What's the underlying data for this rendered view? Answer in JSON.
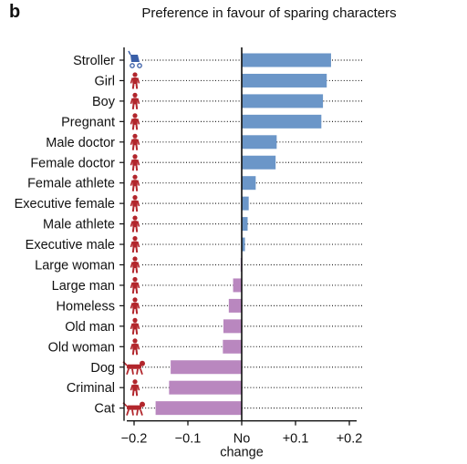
{
  "panel_letter": "b",
  "chart_data": {
    "type": "bar",
    "orientation": "horizontal",
    "title": "Preference in favour of sparing characters",
    "categories": [
      "Stroller",
      "Girl",
      "Boy",
      "Pregnant",
      "Male doctor",
      "Female doctor",
      "Female athlete",
      "Executive female",
      "Male athlete",
      "Executive male",
      "Large woman",
      "Large man",
      "Homeless",
      "Old man",
      "Old woman",
      "Dog",
      "Criminal",
      "Cat"
    ],
    "values": [
      0.166,
      0.158,
      0.151,
      0.148,
      0.065,
      0.063,
      0.026,
      0.013,
      0.011,
      0.006,
      -0.002,
      -0.016,
      -0.024,
      -0.034,
      -0.035,
      -0.132,
      -0.135,
      -0.16
    ],
    "xlim": [
      -0.22,
      0.22
    ],
    "xticks": [
      -0.2,
      -0.1,
      0,
      0.1,
      0.2
    ],
    "xtick_labels": [
      "−0.2",
      "−0.1",
      "No change",
      "+0.1",
      "+0.2"
    ],
    "grid": "dotted guide lines per row",
    "colors": {
      "positive": "#6b96c8",
      "negative": "#b987bf",
      "icon": "#b2262c",
      "stroller_icon": "#3a5fa8"
    }
  }
}
